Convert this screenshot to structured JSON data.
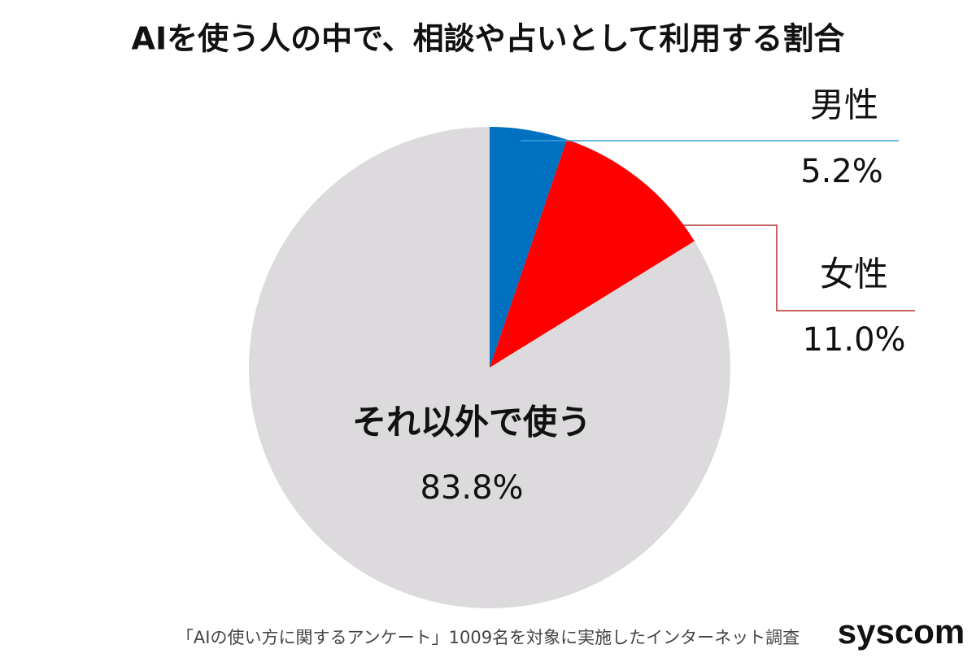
{
  "chart_data": {
    "type": "pie",
    "title": "AIを使う人の中で、相談や占いとして利用する割合",
    "categories": [
      "男性",
      "女性",
      "それ以外で使う"
    ],
    "values": [
      5.2,
      11.0,
      83.8
    ],
    "value_labels": [
      "5.2%",
      "11.0%",
      "83.8%"
    ],
    "colors": [
      "#0070c0",
      "#ff0000",
      "#dcdadc"
    ],
    "note": "「AIの使い方に関するアンケート」1009名を対象に実施したインターネット調査",
    "logo": "syscom"
  }
}
